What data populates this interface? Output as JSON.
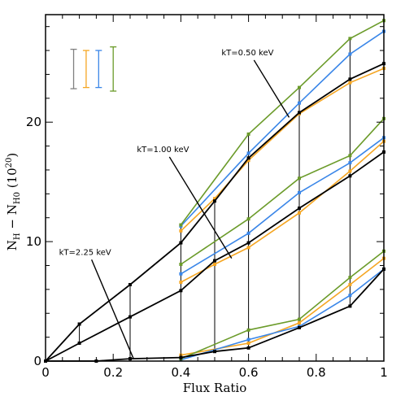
{
  "chart_data": {
    "type": "line",
    "xlabel": "Flux Ratio",
    "ylabel_main": "N",
    "ylabel_sub1": "H",
    "ylabel_dash": " − N",
    "ylabel_sub2": "H0",
    "ylabel_unit_open": " (10",
    "ylabel_unit_exp": "20",
    "ylabel_unit_close": ")",
    "xlim": [
      0,
      1
    ],
    "ylim": [
      0,
      29
    ],
    "x_ticks": [
      "0",
      "0.2",
      "0.4",
      "0.6",
      "0.8",
      "1"
    ],
    "y_ticks": [
      "0",
      "10",
      "20"
    ],
    "colors": {
      "black": "#000000",
      "orange": "#f5a623",
      "blue": "#3a86e8",
      "green": "#6b9b2a",
      "gray": "#808080"
    },
    "annotations": [
      {
        "text": "kT=0.50 keV",
        "x": 0.52,
        "y": 25.6,
        "arrow_to": [
          0.72,
          20.4
        ]
      },
      {
        "text": "kT=1.00 keV",
        "x": 0.27,
        "y": 17.5,
        "arrow_to": [
          0.55,
          8.6
        ]
      },
      {
        "text": "kT=2.25 keV",
        "x": 0.04,
        "y": 8.9,
        "arrow_to": [
          0.26,
          0.2
        ]
      }
    ],
    "error_bars": [
      {
        "color": "gray",
        "x": 0.083,
        "y_low": 22.8,
        "y_high": 26.1
      },
      {
        "color": "orange",
        "x": 0.12,
        "y_low": 22.9,
        "y_high": 26.0
      },
      {
        "color": "blue",
        "x": 0.157,
        "y_low": 22.9,
        "y_high": 26.0
      },
      {
        "color": "green",
        "x": 0.2,
        "y_low": 22.6,
        "y_high": 26.3
      }
    ],
    "series": [
      {
        "group": "kT=0.50 keV",
        "color": "black",
        "x": [
          0,
          0.1,
          0.25,
          0.4,
          0.5,
          0.6,
          0.75,
          0.9,
          1.0
        ],
        "y": [
          0,
          3.1,
          6.4,
          9.9,
          13.4,
          17.0,
          20.8,
          23.6,
          24.9
        ]
      },
      {
        "group": "kT=0.50 keV",
        "color": "orange",
        "x": [
          0.4,
          0.5,
          0.6,
          0.75,
          0.9,
          1.0
        ],
        "y": [
          10.9,
          13.6,
          16.8,
          20.7,
          23.3,
          24.5
        ]
      },
      {
        "group": "kT=0.50 keV",
        "color": "blue",
        "x": [
          0.4,
          0.6,
          0.75,
          0.9,
          1.0
        ],
        "y": [
          11.3,
          17.4,
          21.6,
          25.7,
          27.6
        ]
      },
      {
        "group": "kT=0.50 keV",
        "color": "green",
        "x": [
          0.4,
          0.6,
          0.75,
          0.9,
          1.0
        ],
        "y": [
          11.4,
          19.0,
          22.9,
          27.0,
          28.5
        ]
      },
      {
        "group": "kT=1.00 keV",
        "color": "black",
        "x": [
          0,
          0.1,
          0.25,
          0.4,
          0.5,
          0.6,
          0.75,
          0.9,
          1.0
        ],
        "y": [
          0,
          1.5,
          3.7,
          5.9,
          8.4,
          9.9,
          12.8,
          15.5,
          17.5
        ]
      },
      {
        "group": "kT=1.00 keV",
        "color": "orange",
        "x": [
          0.4,
          0.5,
          0.6,
          0.75,
          0.9,
          1.0
        ],
        "y": [
          6.6,
          8.1,
          9.5,
          12.4,
          15.9,
          18.4
        ]
      },
      {
        "group": "kT=1.00 keV",
        "color": "blue",
        "x": [
          0.4,
          0.6,
          0.75,
          0.9,
          1.0
        ],
        "y": [
          7.3,
          10.7,
          14.1,
          16.6,
          18.7
        ]
      },
      {
        "group": "kT=1.00 keV",
        "color": "green",
        "x": [
          0.4,
          0.6,
          0.75,
          0.9,
          1.0
        ],
        "y": [
          8.1,
          11.9,
          15.3,
          17.2,
          20.3
        ]
      },
      {
        "group": "kT=2.25 keV",
        "color": "black",
        "x": [
          0,
          0.15,
          0.25,
          0.4,
          0.5,
          0.6,
          0.75,
          0.9,
          1.0
        ],
        "y": [
          0,
          0,
          0.2,
          0.3,
          0.8,
          1.1,
          2.8,
          4.6,
          7.7
        ]
      },
      {
        "group": "kT=2.25 keV",
        "color": "orange",
        "x": [
          0.4,
          0.6,
          0.75,
          0.9,
          1.0
        ],
        "y": [
          0.5,
          1.5,
          3.2,
          6.4,
          8.6
        ]
      },
      {
        "group": "kT=2.25 keV",
        "color": "blue",
        "x": [
          0.4,
          0.6,
          0.75,
          0.9,
          1.0
        ],
        "y": [
          0.1,
          1.8,
          2.9,
          5.5,
          7.7
        ]
      },
      {
        "group": "kT=2.25 keV",
        "color": "green",
        "x": [
          0.4,
          0.6,
          0.75,
          0.9,
          1.0
        ],
        "y": [
          0.2,
          2.6,
          3.5,
          7.0,
          9.2
        ]
      }
    ],
    "vertical_connectors": [
      {
        "x": 0.1,
        "y_low": 1.5,
        "y_high": 3.1
      },
      {
        "x": 0.25,
        "y_low": 0.2,
        "y_high": 6.4
      },
      {
        "x": 0.4,
        "y_low": 0.1,
        "y_high": 11.4
      },
      {
        "x": 0.5,
        "y_low": 0.8,
        "y_high": 13.6
      },
      {
        "x": 0.6,
        "y_low": 1.1,
        "y_high": 19.0
      },
      {
        "x": 0.75,
        "y_low": 2.8,
        "y_high": 22.9
      },
      {
        "x": 0.9,
        "y_low": 4.6,
        "y_high": 27.0
      },
      {
        "x": 1.0,
        "y_low": 7.7,
        "y_high": 28.5
      }
    ]
  }
}
